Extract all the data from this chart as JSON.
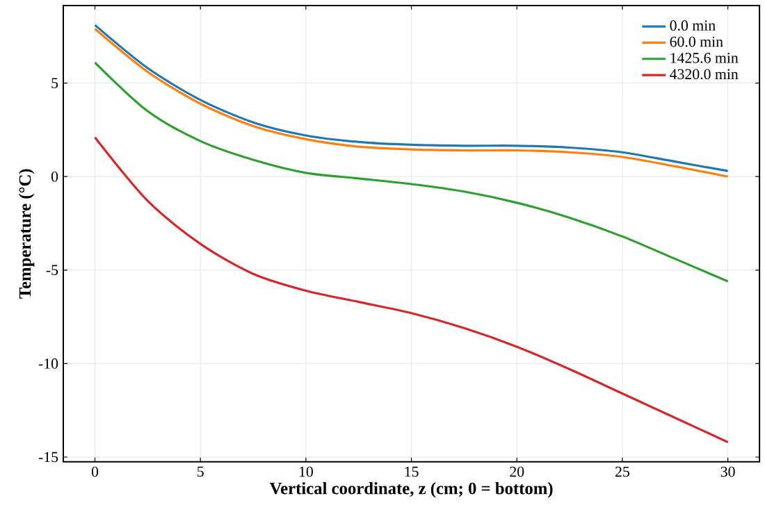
{
  "chart_data": {
    "type": "line",
    "xlabel": "Vertical coordinate, z (cm; 0 = bottom)",
    "ylabel": "Temperature (°C)",
    "x": [
      0,
      2.5,
      5,
      7.5,
      10,
      12.5,
      15,
      17.5,
      20,
      22.5,
      25,
      27.5,
      30
    ],
    "series": [
      {
        "name": "0.0 min",
        "color": "#1f77b4",
        "values": [
          8.1,
          5.8,
          4.1,
          2.9,
          2.2,
          1.85,
          1.7,
          1.65,
          1.65,
          1.55,
          1.3,
          0.8,
          0.3
        ]
      },
      {
        "name": "60.0 min",
        "color": "#ff7f0e",
        "values": [
          7.9,
          5.6,
          3.9,
          2.7,
          2.0,
          1.6,
          1.45,
          1.4,
          1.4,
          1.3,
          1.05,
          0.55,
          0.0
        ]
      },
      {
        "name": "1425.6 min",
        "color": "#2ca02c",
        "values": [
          6.1,
          3.5,
          1.9,
          0.9,
          0.2,
          -0.1,
          -0.4,
          -0.8,
          -1.4,
          -2.2,
          -3.2,
          -4.4,
          -5.6
        ]
      },
      {
        "name": "4320.0 min",
        "color": "#d62728",
        "values": [
          2.1,
          -1.3,
          -3.6,
          -5.2,
          -6.1,
          -6.7,
          -7.3,
          -8.1,
          -9.1,
          -10.3,
          -11.6,
          -12.9,
          -14.2
        ]
      }
    ],
    "xlim": [
      -1.5,
      31.5
    ],
    "ylim": [
      -15.25,
      9.15
    ],
    "xticks": [
      0,
      5,
      10,
      15,
      20,
      25,
      30
    ],
    "yticks": [
      -15,
      -10,
      -5,
      0,
      5
    ],
    "grid": true,
    "legend": "top right",
    "marker": "none",
    "line_style": "solid"
  }
}
